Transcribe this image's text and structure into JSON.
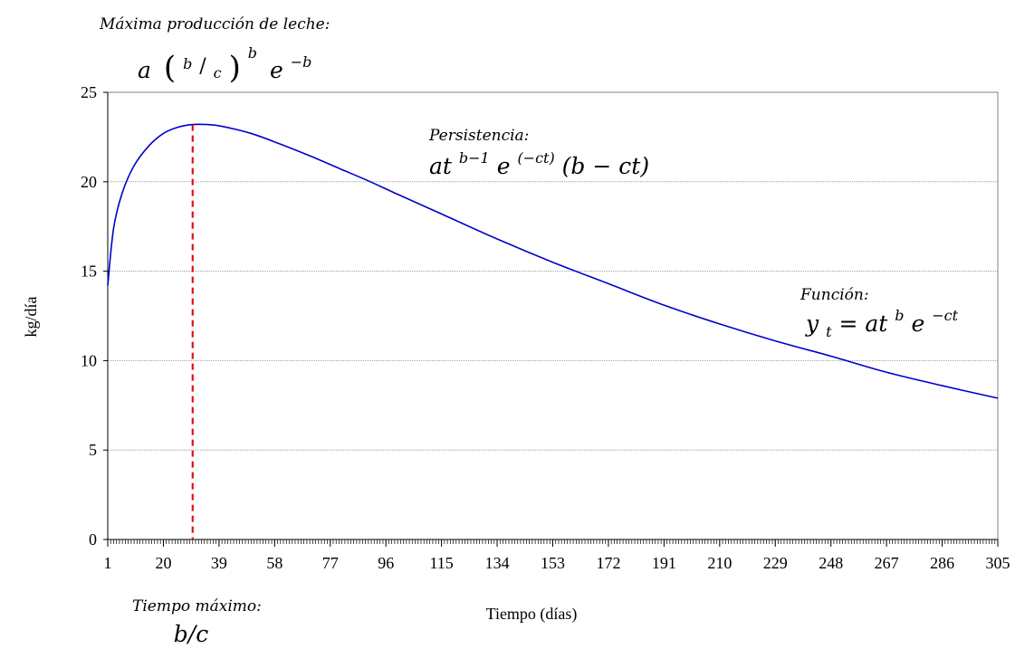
{
  "chart_data": {
    "type": "line",
    "xlabel": "Tiempo (días)",
    "ylabel": "kg/día",
    "xlim": [
      1,
      305
    ],
    "ylim": [
      0,
      25
    ],
    "x_ticks": [
      1,
      20,
      39,
      58,
      77,
      96,
      115,
      134,
      153,
      172,
      191,
      210,
      229,
      248,
      267,
      286,
      305
    ],
    "y_ticks": [
      0,
      5,
      10,
      15,
      20,
      25
    ],
    "grid": {
      "horizontal": true,
      "vertical": false
    },
    "line_color": "#0000cc",
    "marker_color": "#dd1111",
    "series": [
      {
        "x": [
          1,
          3,
          6,
          10,
          15,
          20,
          25,
          30,
          35,
          40,
          50,
          60,
          70,
          80,
          90,
          100,
          115,
          134,
          153,
          172,
          191,
          210,
          229,
          248,
          267,
          286,
          305
        ],
        "y": [
          14.2,
          17.4,
          19.4,
          20.9,
          22.0,
          22.7,
          23.05,
          23.2,
          23.2,
          23.1,
          22.7,
          22.1,
          21.45,
          20.75,
          20.05,
          19.3,
          18.2,
          16.8,
          15.5,
          14.3,
          13.1,
          12.05,
          11.1,
          10.25,
          9.35,
          8.6,
          7.9
        ]
      }
    ],
    "annotations": {
      "peak_time": {
        "x": 30,
        "title": "Tiempo máximo:",
        "formula": "b/c"
      },
      "peak_yield": {
        "title": "Máxima producción de leche:",
        "formula": {
          "a": "a",
          "open": "(",
          "num": "b",
          "slash": "/",
          "den": "c",
          "close": ")",
          "exp": "b",
          "e": "e",
          "e_exp": "−b"
        }
      },
      "persistence": {
        "title": "Persistencia:",
        "formula": {
          "base": "at",
          "exp1": "b−1",
          "e": "e",
          "exp2": "(−ct)",
          "rest": "(b − ct)"
        }
      },
      "function": {
        "title": "Función:",
        "formula": {
          "y": "y",
          "sub": "t",
          "eq": " = at",
          "exp1": "b",
          "e": "e",
          "exp2": "−ct"
        }
      }
    }
  }
}
